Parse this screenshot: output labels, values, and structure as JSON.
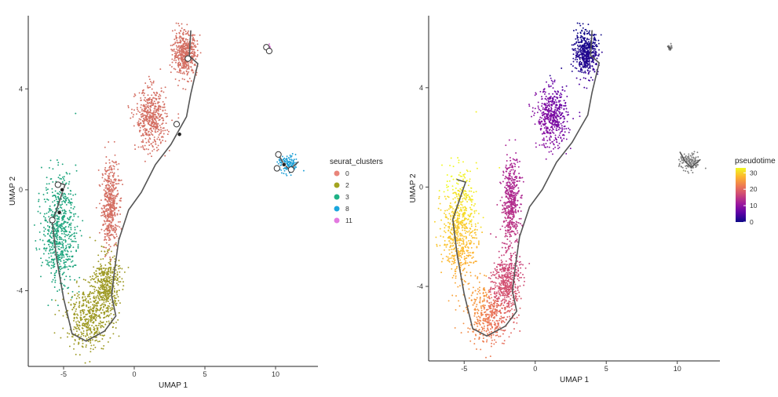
{
  "chart_data": [
    {
      "type": "scatter",
      "xlabel": "UMAP 1",
      "ylabel": "UMAP 2",
      "x_ticks": [
        -5,
        0,
        5,
        10
      ],
      "y_ticks": [
        -4,
        0,
        4
      ],
      "xlim": [
        -7.5,
        13
      ],
      "ylim": [
        -7,
        6.9
      ],
      "color_by": "seurat_clusters",
      "legend": {
        "title": "seurat_clusters",
        "position": "right",
        "entries": [
          {
            "label": "0",
            "color": "#e9857a"
          },
          {
            "label": "2",
            "color": "#a3a420"
          },
          {
            "label": "3",
            "color": "#1fb286"
          },
          {
            "label": "8",
            "color": "#1aa6dd"
          },
          {
            "label": "11",
            "color": "#e37ae0"
          }
        ]
      },
      "clusters": [
        {
          "name": "0",
          "color": "#d46f63",
          "n": 1500,
          "regions": [
            [
              -1.7,
              -0.6,
              0.5,
              1.4
            ],
            [
              3.6,
              5.4,
              0.7,
              0.7
            ],
            [
              1.2,
              2.8,
              0.9,
              1.0
            ]
          ]
        },
        {
          "name": "2",
          "color": "#9e9a25",
          "n": 900,
          "regions": [
            [
              -3.2,
              -5.1,
              1.3,
              1.0
            ],
            [
              -2.0,
              -3.8,
              0.8,
              1.0
            ]
          ]
        },
        {
          "name": "3",
          "color": "#1ea57e",
          "n": 650,
          "regions": [
            [
              -5.3,
              -1.6,
              1.0,
              1.8
            ]
          ]
        },
        {
          "name": "8",
          "color": "#1d9fd6",
          "n": 130,
          "regions": [
            [
              10.9,
              1.0,
              0.6,
              0.3
            ]
          ]
        },
        {
          "name": "11",
          "color": "#d970d6",
          "n": 20,
          "regions": [
            [
              9.5,
              5.6,
              0.15,
              0.12
            ]
          ]
        }
      ]
    },
    {
      "type": "scatter",
      "xlabel": "UMAP 1",
      "ylabel": "UMAP 2",
      "x_ticks": [
        -5,
        0,
        5,
        10
      ],
      "y_ticks": [
        -4,
        0,
        4
      ],
      "xlim": [
        -7.5,
        13
      ],
      "ylim": [
        -7,
        6.9
      ],
      "color_by": "pseudotime",
      "legend": {
        "title": "pseudotime",
        "position": "right",
        "type": "colorbar",
        "ticks": [
          0,
          10,
          20,
          30
        ],
        "range": [
          0,
          33
        ],
        "colors": [
          "#0d0887",
          "#5c01a6",
          "#9c179e",
          "#cc4778",
          "#ed7953",
          "#fdb42f",
          "#f0f921"
        ]
      },
      "unassigned_color": "#7f7f7f",
      "pseudotime_range": [
        0,
        33
      ]
    }
  ]
}
